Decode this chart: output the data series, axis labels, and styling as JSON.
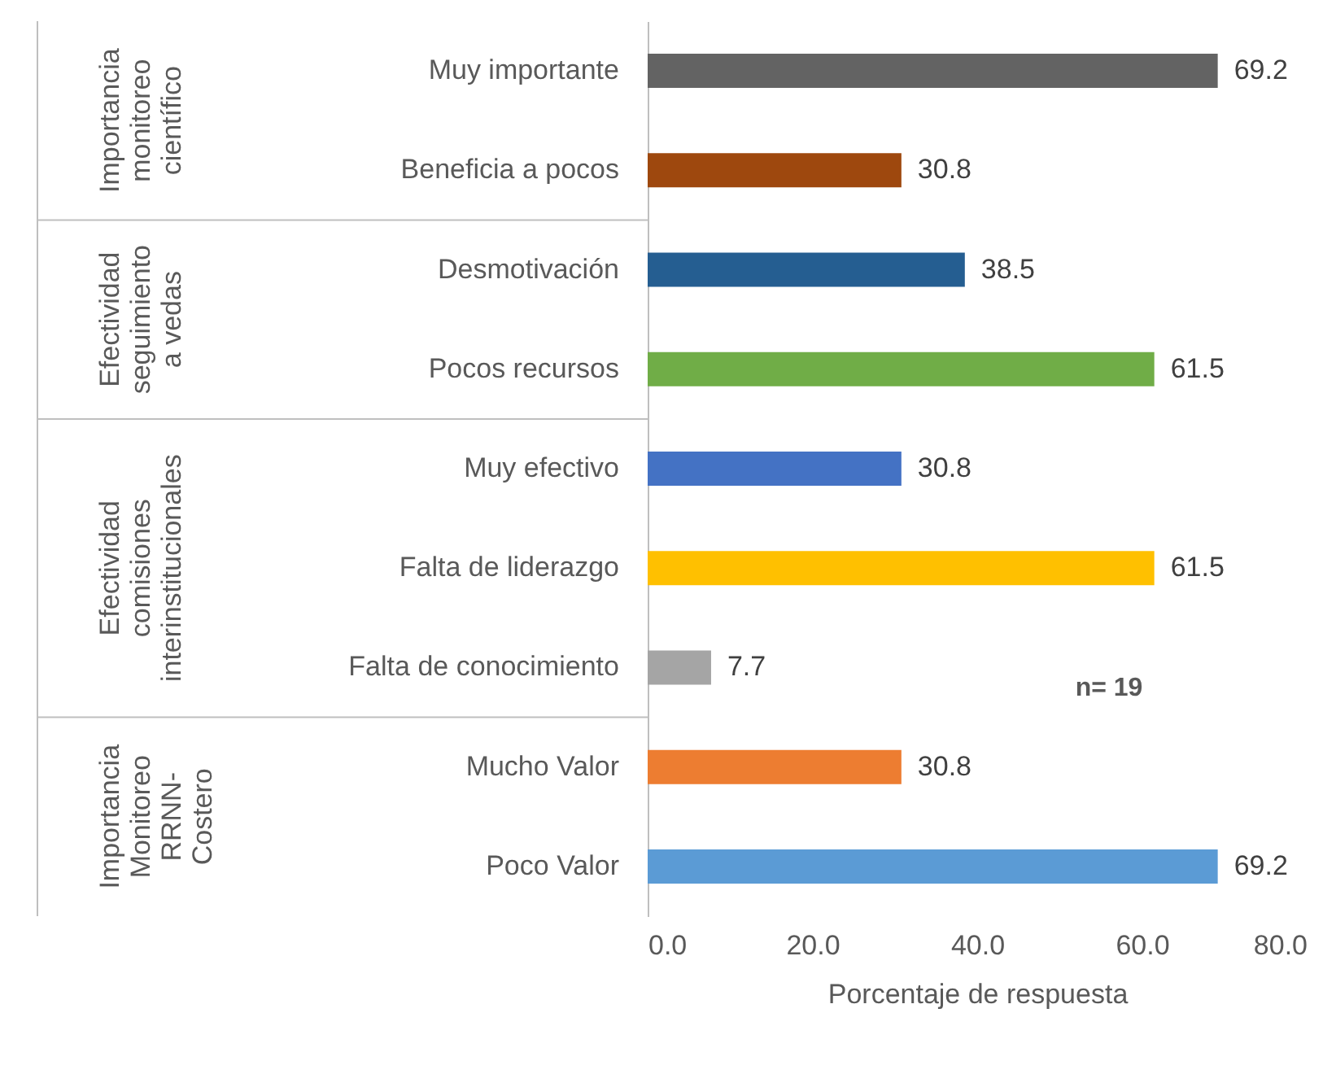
{
  "chart_data": {
    "type": "bar",
    "orientation": "horizontal",
    "xlabel": "Porcentaje de respuesta",
    "categories": [
      "Muy importante",
      "Beneficia a pocos",
      "Desmotivación",
      "Pocos recursos",
      "Muy efectivo",
      "Falta de liderazgo",
      "Falta de conocimiento",
      "Mucho  Valor",
      "Poco Valor"
    ],
    "values": [
      69.2,
      30.8,
      38.5,
      61.5,
      30.8,
      61.5,
      7.7,
      30.8,
      69.2
    ],
    "colors": [
      "#636363",
      "#9e480e",
      "#255e91",
      "#70ad47",
      "#4472c4",
      "#ffc000",
      "#a5a5a5",
      "#ed7d31",
      "#5b9bd5"
    ],
    "xlim": [
      0,
      80
    ],
    "xticks": [
      {
        "value": 0,
        "label": "0.0"
      },
      {
        "value": 20,
        "label": "20.0"
      },
      {
        "value": 40,
        "label": "40.0"
      },
      {
        "value": 60,
        "label": "60.0"
      },
      {
        "value": 80,
        "label": "80.0"
      }
    ],
    "data_labels": true,
    "grid": false,
    "legend": false,
    "annotations": [
      "Importancia\nmonitoreo\ncientífico",
      "Efectividad\nseguimiento\na vedas",
      "Efectividad\ncomisiones\ninterinstitucionales",
      "Importancia\nMonitoreo\nRRNN-\nCostero",
      "n= 19"
    ]
  }
}
